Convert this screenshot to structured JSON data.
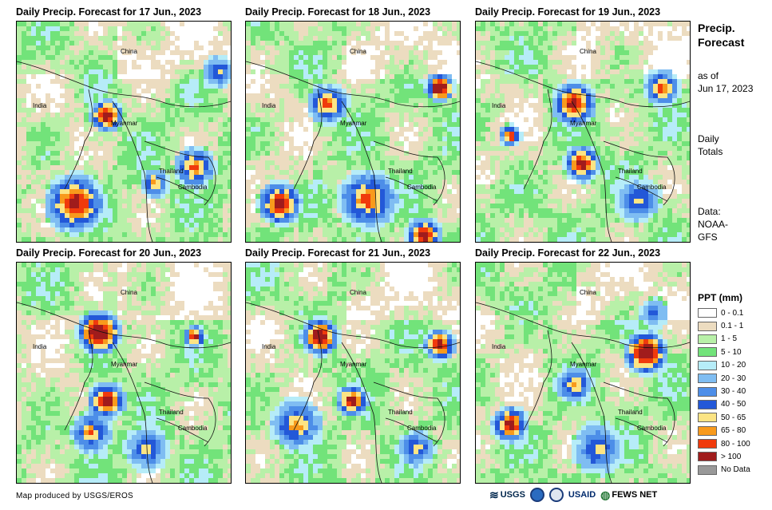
{
  "panels": [
    {
      "title": "Daily Precip. Forecast for 17 Jun., 2023",
      "variant": 0
    },
    {
      "title": "Daily Precip. Forecast for 18 Jun., 2023",
      "variant": 1
    },
    {
      "title": "Daily Precip. Forecast for 19 Jun., 2023",
      "variant": 2
    },
    {
      "title": "Daily Precip. Forecast for 20 Jun., 2023",
      "variant": 3
    },
    {
      "title": "Daily Precip. Forecast for 21 Jun., 2023",
      "variant": 4
    },
    {
      "title": "Daily Precip. Forecast for 22 Jun., 2023",
      "variant": 5
    }
  ],
  "map_labels": {
    "china": "China",
    "india": "India",
    "myanmar": "Myanmar",
    "thailand": "Thailand",
    "cambodia": "Cambodia"
  },
  "sidebar": {
    "title_line1": "Precip.",
    "title_line2": "Forecast",
    "asof_line1": "as of",
    "asof_line2": "Jun 17, 2023",
    "totals_line1": "Daily",
    "totals_line2": "Totals",
    "data_line1": "Data:",
    "data_line2": "NOAA-",
    "data_line3": "GFS"
  },
  "legend": {
    "title": "PPT (mm)",
    "items": [
      {
        "label": "0 - 0.1",
        "color": "#ffffff"
      },
      {
        "label": "0.1 - 1",
        "color": "#ecdcc0"
      },
      {
        "label": "1 - 5",
        "color": "#b8f0a8"
      },
      {
        "label": "5 - 10",
        "color": "#72e37a"
      },
      {
        "label": "10 - 20",
        "color": "#b6ecf8"
      },
      {
        "label": "20 - 30",
        "color": "#7fbdf2"
      },
      {
        "label": "30 - 40",
        "color": "#4d8ee8"
      },
      {
        "label": "40 - 50",
        "color": "#2358d8"
      },
      {
        "label": "50 - 65",
        "color": "#fce484"
      },
      {
        "label": "65 - 80",
        "color": "#f89a1c"
      },
      {
        "label": "80 - 100",
        "color": "#f03a0c"
      },
      {
        "label": "> 100",
        "color": "#a01c1c"
      },
      {
        "label": "No Data",
        "color": "#999999"
      }
    ]
  },
  "credit": "Map produced by USGS/EROS",
  "logos": {
    "usgs": "USGS",
    "usaid": "USAID",
    "fewsnet": "FEWS NET"
  }
}
